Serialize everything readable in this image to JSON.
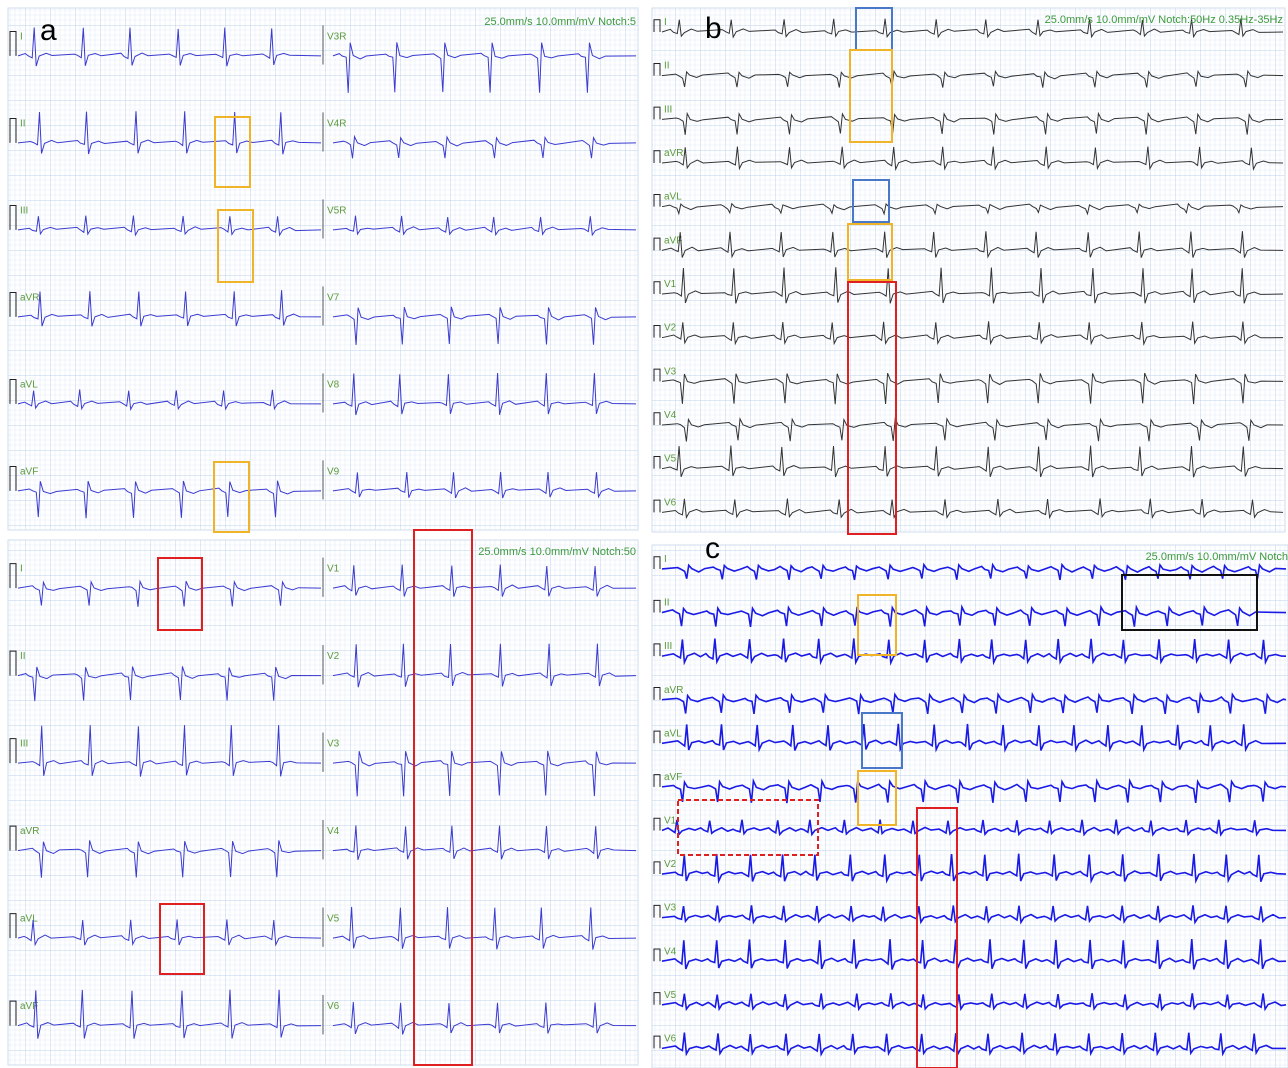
{
  "panels": [
    {
      "letter": "a",
      "header": "25.0mm/s 10.0mm/mV Notch:5",
      "leads": [
        "I",
        "II",
        "III",
        "aVR",
        "aVL",
        "aVF",
        "V3R",
        "V4R",
        "V5R",
        "V7",
        "V8",
        "V9"
      ]
    },
    {
      "header": "25.0mm/s 10.0mm/mV Notch:50",
      "leads": [
        "I",
        "II",
        "III",
        "aVR",
        "aVL",
        "aVF",
        "V1",
        "V2",
        "V3",
        "V4",
        "V5",
        "V6"
      ]
    },
    {
      "letter": "b",
      "header": "25.0mm/s 10.0mm/mV Notch:50Hz 0.35Hz-35Hz",
      "leads": [
        "I",
        "II",
        "III",
        "aVR",
        "aVL",
        "aVF",
        "V1",
        "V2",
        "V3",
        "V4",
        "V5",
        "V6"
      ]
    },
    {
      "letter": "c",
      "header": "25.0mm/s 10.0mm/mV Notch",
      "leads": [
        "I",
        "II",
        "III",
        "aVR",
        "aVL",
        "aVF",
        "V1",
        "V2",
        "V3",
        "V4",
        "V5",
        "V6"
      ]
    }
  ]
}
